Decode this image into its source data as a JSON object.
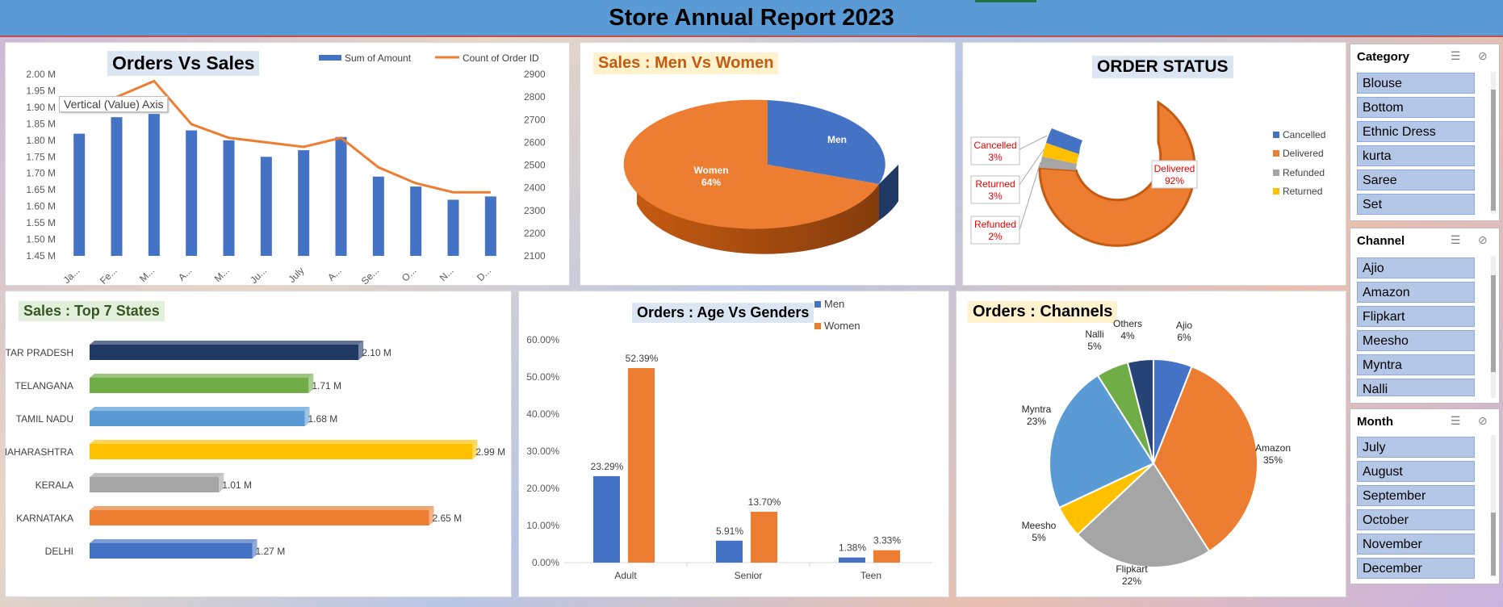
{
  "header": {
    "title": "Store Annual Report 2023"
  },
  "orders_vs_sales": {
    "title": "Orders Vs Sales",
    "tooltip": "Vertical (Value) Axis",
    "legend": {
      "bar": "Sum of Amount",
      "line": "Count of Order ID"
    },
    "left_ticks": [
      "2.00 M",
      "1.95 M",
      "1.90 M",
      "1.85 M",
      "1.80 M",
      "1.75 M",
      "1.70 M",
      "1.65 M",
      "1.60 M",
      "1.55 M",
      "1.50 M",
      "1.45 M"
    ],
    "right_ticks": [
      "2900",
      "2800",
      "2700",
      "2600",
      "2500",
      "2400",
      "2300",
      "2200",
      "2100"
    ],
    "x_labels": [
      "Ja...",
      "Fe...",
      "M...",
      "A...",
      "M...",
      "Ju...",
      "July",
      "A...",
      "Se...",
      "O...",
      "N...",
      "D..."
    ]
  },
  "men_vs_women": {
    "title": "Sales : Men Vs Women",
    "men_label": "Men",
    "women_label": "Women",
    "women_pct": "64%"
  },
  "order_status": {
    "title": "ORDER STATUS",
    "labels": [
      {
        "name": "Cancelled",
        "pct": "3%"
      },
      {
        "name": "Returned",
        "pct": "3%"
      },
      {
        "name": "Refunded",
        "pct": "2%"
      },
      {
        "name": "Delivered",
        "pct": "92%"
      }
    ],
    "legend": [
      "Cancelled",
      "Delivered",
      "Refunded",
      "Returned"
    ]
  },
  "top_states": {
    "title": "Sales : Top 7 States",
    "states": [
      "UTTAR PRADESH",
      "TELANGANA",
      "TAMIL NADU",
      "MAHARASHTRA",
      "KERALA",
      "KARNATAKA",
      "DELHI"
    ],
    "labels": [
      "2.10 M",
      "1.71 M",
      "1.68 M",
      "2.99 M",
      "1.01 M",
      "2.65 M",
      "1.27 M"
    ]
  },
  "age_vs_gender": {
    "title": "Orders : Age Vs Genders",
    "legend": [
      "Men",
      "Women"
    ],
    "y_ticks": [
      "60.00%",
      "50.00%",
      "40.00%",
      "30.00%",
      "20.00%",
      "10.00%",
      "0.00%"
    ],
    "groups": [
      "Adult",
      "Senior",
      "Teen"
    ],
    "men_labels": [
      "23.29%",
      "5.91%",
      "1.38%"
    ],
    "women_labels": [
      "52.39%",
      "13.70%",
      "3.33%"
    ]
  },
  "channels": {
    "title": "Orders :  Channels",
    "slices": [
      {
        "name": "Ajio",
        "pct": "6%"
      },
      {
        "name": "Amazon",
        "pct": "35%"
      },
      {
        "name": "Flipkart",
        "pct": "22%"
      },
      {
        "name": "Meesho",
        "pct": "5%"
      },
      {
        "name": "Myntra",
        "pct": "23%"
      },
      {
        "name": "Nalli",
        "pct": "5%"
      },
      {
        "name": "Others",
        "pct": "4%"
      }
    ]
  },
  "slicers": {
    "category": {
      "title": "Category",
      "items": [
        "Blouse",
        "Bottom",
        "Ethnic Dress",
        "kurta",
        "Saree",
        "Set"
      ]
    },
    "channel": {
      "title": "Channel",
      "items": [
        "Ajio",
        "Amazon",
        "Flipkart",
        "Meesho",
        "Myntra",
        "Nalli"
      ]
    },
    "month": {
      "title": "Month",
      "items": [
        "July",
        "August",
        "September",
        "October",
        "November",
        "December"
      ]
    }
  },
  "chart_data": [
    {
      "type": "bar",
      "title": "Orders Vs Sales",
      "categories": [
        "January",
        "February",
        "March",
        "April",
        "May",
        "June",
        "July",
        "August",
        "September",
        "October",
        "November",
        "December"
      ],
      "series": [
        {
          "name": "Sum of Amount",
          "axis": "left",
          "values": [
            1.82,
            1.87,
            1.88,
            1.83,
            1.8,
            1.75,
            1.77,
            1.81,
            1.69,
            1.66,
            1.62,
            1.63
          ]
        },
        {
          "name": "Count of Order ID",
          "type": "line",
          "axis": "right",
          "values": [
            2760,
            2800,
            2870,
            2680,
            2620,
            2600,
            2580,
            2620,
            2490,
            2420,
            2380,
            2380
          ]
        }
      ],
      "ylim_left": [
        1.45,
        2.0
      ],
      "ylim_right": [
        2100,
        2900
      ],
      "colors": {
        "bar": "#4472c4",
        "line": "#ed7d31"
      }
    },
    {
      "type": "pie",
      "title": "Sales : Men Vs Women",
      "categories": [
        "Men",
        "Women"
      ],
      "values": [
        36,
        64
      ],
      "colors": [
        "#4472c4",
        "#ed7d31"
      ]
    },
    {
      "type": "pie",
      "title": "ORDER STATUS",
      "categories": [
        "Cancelled",
        "Delivered",
        "Refunded",
        "Returned"
      ],
      "values": [
        3,
        92,
        2,
        3
      ],
      "colors": [
        "#4472c4",
        "#ed7d31",
        "#a5a5a5",
        "#ffc000"
      ]
    },
    {
      "type": "bar",
      "title": "Sales : Top 7 States",
      "categories": [
        "UTTAR PRADESH",
        "TELANGANA",
        "TAMIL NADU",
        "MAHARASHTRA",
        "KERALA",
        "KARNATAKA",
        "DELHI"
      ],
      "values": [
        2.1,
        1.71,
        1.68,
        2.99,
        1.01,
        2.65,
        1.27
      ],
      "colors": [
        "#203864",
        "#70ad47",
        "#5b9bd5",
        "#ffc000",
        "#a5a5a5",
        "#ed7d31",
        "#4472c4"
      ],
      "xlim": [
        0,
        3.0
      ]
    },
    {
      "type": "bar",
      "title": "Orders : Age Vs Genders",
      "categories": [
        "Adult",
        "Senior",
        "Teen"
      ],
      "series": [
        {
          "name": "Men",
          "values": [
            23.29,
            5.91,
            1.38
          ]
        },
        {
          "name": "Women",
          "values": [
            52.39,
            13.7,
            3.33
          ]
        }
      ],
      "ylim": [
        0,
        60
      ],
      "colors": [
        "#4472c4",
        "#ed7d31"
      ]
    },
    {
      "type": "pie",
      "title": "Orders :  Channels",
      "categories": [
        "Ajio",
        "Amazon",
        "Flipkart",
        "Meesho",
        "Myntra",
        "Nalli",
        "Others"
      ],
      "values": [
        6,
        35,
        22,
        5,
        23,
        5,
        4
      ],
      "colors": [
        "#4472c4",
        "#ed7d31",
        "#a5a5a5",
        "#ffc000",
        "#5b9bd5",
        "#70ad47",
        "#264478"
      ]
    }
  ]
}
